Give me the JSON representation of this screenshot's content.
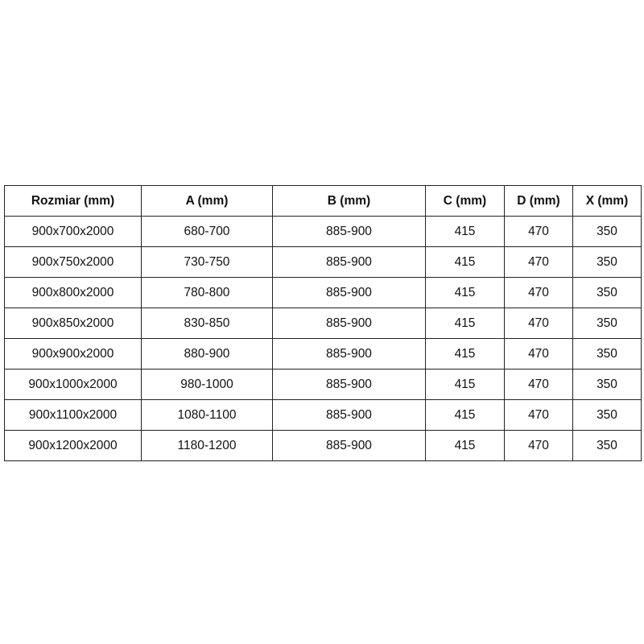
{
  "table": {
    "headers": [
      "Rozmiar (mm)",
      "A (mm)",
      "B (mm)",
      "C (mm)",
      "D (mm)",
      "X (mm)"
    ],
    "rows": [
      [
        "900x700x2000",
        "680-700",
        "885-900",
        "415",
        "470",
        "350"
      ],
      [
        "900x750x2000",
        "730-750",
        "885-900",
        "415",
        "470",
        "350"
      ],
      [
        "900x800x2000",
        "780-800",
        "885-900",
        "415",
        "470",
        "350"
      ],
      [
        "900x850x2000",
        "830-850",
        "885-900",
        "415",
        "470",
        "350"
      ],
      [
        "900x900x2000",
        "880-900",
        "885-900",
        "415",
        "470",
        "350"
      ],
      [
        "900x1000x2000",
        "980-1000",
        "885-900",
        "415",
        "470",
        "350"
      ],
      [
        "900x1100x2000",
        "1080-1100",
        "885-900",
        "415",
        "470",
        "350"
      ],
      [
        "900x1200x2000",
        "1180-1200",
        "885-900",
        "415",
        "470",
        "350"
      ]
    ]
  }
}
